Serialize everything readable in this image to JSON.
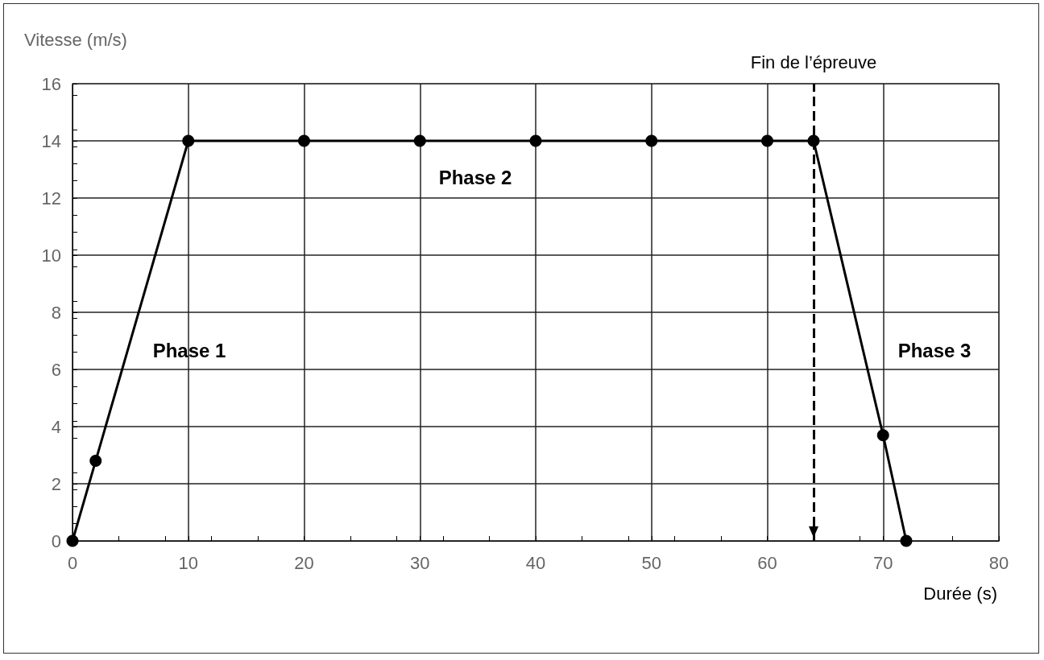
{
  "chart_data": {
    "type": "line",
    "xlabel": "Durée (s)",
    "ylabel": "Vitesse (m/s)",
    "x": [
      0,
      2,
      10,
      20,
      30,
      40,
      50,
      60,
      64,
      70,
      72
    ],
    "series": [
      {
        "color": "#000000",
        "values": [
          0,
          2.8,
          14,
          14,
          14,
          14,
          14,
          14,
          14,
          3.7,
          0
        ]
      }
    ],
    "xlim": [
      0,
      80
    ],
    "xticks": [
      0,
      10,
      20,
      30,
      40,
      50,
      60,
      70,
      80
    ],
    "ylim": [
      0,
      16
    ],
    "yticks": [
      0,
      2,
      4,
      6,
      8,
      10,
      12,
      14,
      16
    ],
    "grid": true,
    "marker": "circle",
    "line_style": "solid",
    "ref_lines": [
      {
        "axis": "x",
        "value": 64,
        "label": "Fin de l’épreuve",
        "color": "#000000",
        "line_style": "dashed"
      }
    ],
    "annotations": [
      "Phase 1",
      "Phase 2",
      "Phase 3"
    ]
  }
}
